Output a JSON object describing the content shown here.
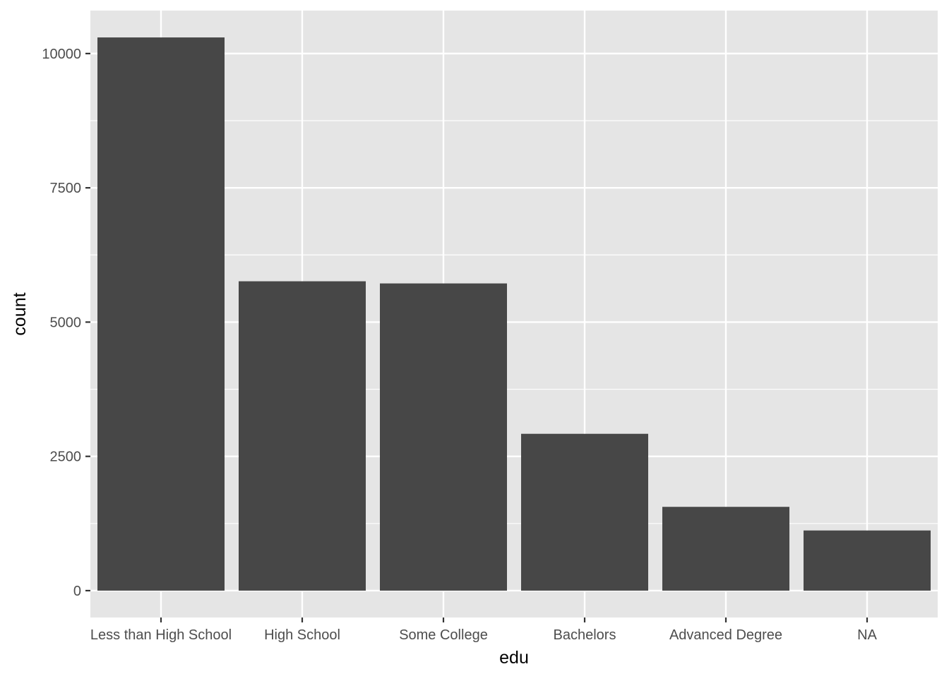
{
  "chart_data": {
    "type": "bar",
    "categories": [
      "Less than High School",
      "High School",
      "Some College",
      "Bachelors",
      "Advanced Degree",
      "NA"
    ],
    "values": [
      10300,
      5760,
      5720,
      2920,
      1560,
      1120
    ],
    "title": "",
    "xlabel": "edu",
    "ylabel": "count",
    "ylim": [
      -500,
      10800
    ],
    "yticks": [
      0,
      2500,
      5000,
      7500,
      10000
    ],
    "yticks_minor": [
      1250,
      3750,
      6250,
      8750
    ],
    "ytick_labels": [
      "0",
      "2500",
      "5000",
      "7500",
      "10000"
    ],
    "grid": true,
    "legend": "none"
  },
  "colors": {
    "panel_background": "#e5e5e5",
    "grid": "#ffffff",
    "bar_fill": "#474747",
    "tick_mark": "#333333",
    "tick_text": "#4d4d4d",
    "axis_title": "#000000"
  }
}
